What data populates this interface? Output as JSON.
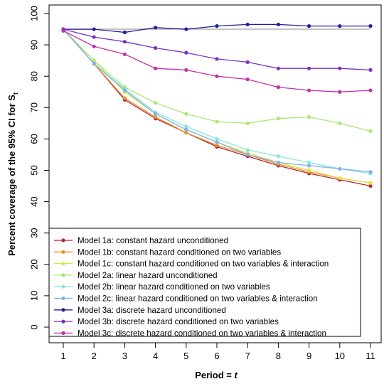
{
  "chart_data": {
    "type": "line",
    "xlabel": "Period = ",
    "xlabel_var": "t",
    "ylabel": "Percent coverage of the 95% CI for S",
    "ylabel_sub": "t",
    "x": [
      1,
      2,
      3,
      4,
      5,
      6,
      7,
      8,
      9,
      10,
      11
    ],
    "xlim": [
      1,
      11
    ],
    "ylim": [
      0,
      100
    ],
    "x_ticks": [
      "1",
      "2",
      "3",
      "4",
      "5",
      "6",
      "7",
      "8",
      "9",
      "10",
      "11"
    ],
    "y_ticks": [
      "0",
      "10",
      "20",
      "30",
      "40",
      "50",
      "60",
      "70",
      "80",
      "90",
      "100"
    ],
    "reference_line": {
      "y": 95,
      "color": "#b0b0b0"
    },
    "legend_position": "bottom-left",
    "grid": false,
    "series": [
      {
        "name": "Model 1a: constant hazard unconditioned",
        "color": "#b8262a",
        "values": [
          95,
          84,
          72.5,
          66.5,
          62,
          57.5,
          54.5,
          51.5,
          49,
          47,
          45
        ]
      },
      {
        "name": "Model 1b: constant hazard conditioned on two variables",
        "color": "#e0952f",
        "values": [
          95,
          84,
          73,
          67,
          62,
          58,
          55,
          52,
          49.5,
          47.5,
          46
        ]
      },
      {
        "name": "Model 1c: constant hazard conditioned on two variables & interaction",
        "color": "#e3e04a",
        "values": [
          95,
          85,
          75,
          68,
          63,
          59,
          55.5,
          52.5,
          50,
          47.5,
          46
        ]
      },
      {
        "name": "Model 2a: linear hazard unconditioned",
        "color": "#a8e870",
        "values": [
          95,
          85,
          76.5,
          71.5,
          68,
          65.5,
          65,
          66.5,
          67,
          65,
          62.5
        ]
      },
      {
        "name": "Model 2b: linear hazard conditioned on two variables",
        "color": "#88e8dc",
        "values": [
          95,
          84,
          76,
          68.5,
          64,
          60,
          56.5,
          54.5,
          52.5,
          50.5,
          49
        ]
      },
      {
        "name": "Model 2c: linear hazard conditioned on two variables & interaction",
        "color": "#7fb2e8",
        "values": [
          95,
          84,
          75.5,
          68,
          63,
          59,
          55,
          52.5,
          51.5,
          50.5,
          49.5
        ]
      },
      {
        "name": "Model 3a: discrete hazard unconditioned",
        "color": "#1e1e9e",
        "values": [
          95,
          95,
          94,
          95.5,
          95,
          96,
          96.5,
          96.5,
          96,
          96,
          96
        ]
      },
      {
        "name": "Model 3b: discrete hazard conditioned on two variables",
        "color": "#7a2fc4",
        "values": [
          95,
          92.5,
          91,
          89,
          87.5,
          85.5,
          84.5,
          82.5,
          82.5,
          82.5,
          82
        ]
      },
      {
        "name": "Model 3c: discrete hazard conditioned on two variables & interaction",
        "color": "#c42fa6",
        "values": [
          94.5,
          89.5,
          87,
          82.5,
          82,
          80,
          79,
          76.5,
          75.5,
          75,
          75.5
        ]
      }
    ]
  }
}
